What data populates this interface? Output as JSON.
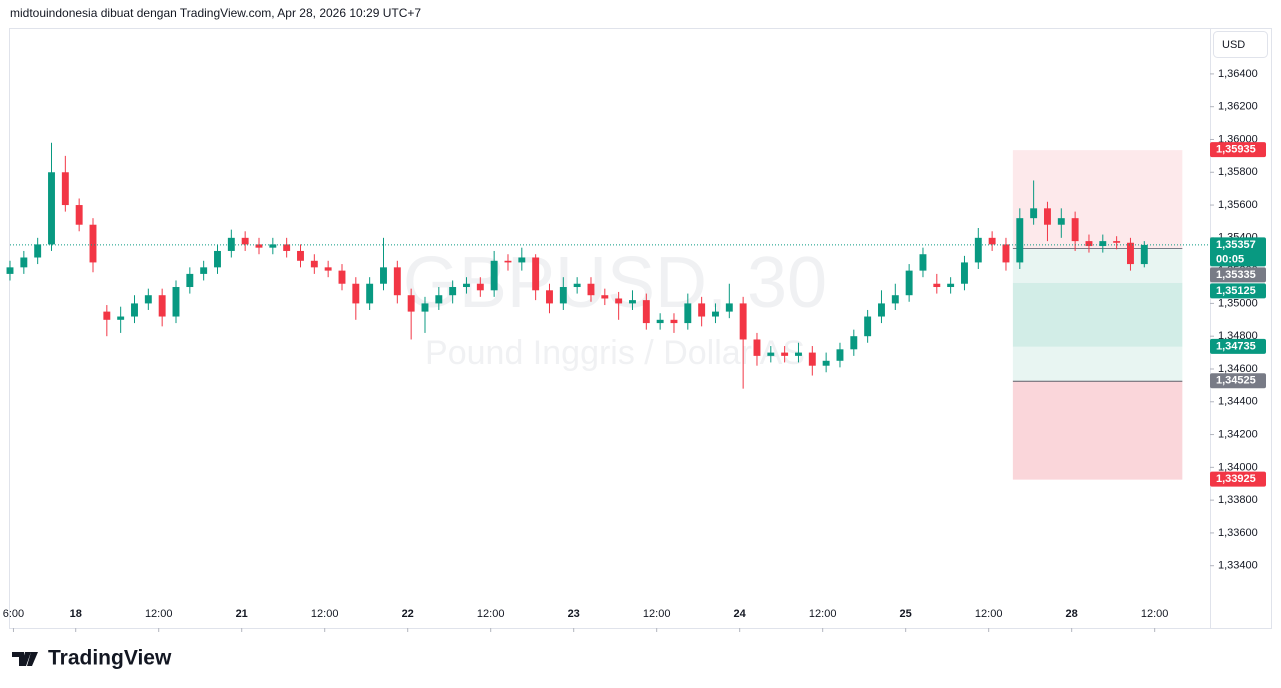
{
  "chart_data": {
    "type": "candlestick",
    "title": "midtouindonesia dibuat dengan TradingView.com, Apr 28, 2026 10:29 UTC+7",
    "watermark": "GBPUSD, 30",
    "watermark_subtitle": "Pound Inggris / Dollar AS",
    "currency": "USD",
    "brand": "TradingView",
    "up_color": "#089981",
    "down_color": "#f23645",
    "xlim": [
      0,
      347
    ],
    "ylim": [
      1.3302,
      1.3668
    ],
    "yticks": [
      {
        "value": 1.334,
        "label": "1,33400"
      },
      {
        "value": 1.336,
        "label": "1,33600"
      },
      {
        "value": 1.338,
        "label": "1,33800"
      },
      {
        "value": 1.34,
        "label": "1,34000"
      },
      {
        "value": 1.342,
        "label": "1,34200"
      },
      {
        "value": 1.344,
        "label": "1,34400"
      },
      {
        "value": 1.346,
        "label": "1,34600"
      },
      {
        "value": 1.348,
        "label": "1,34800"
      },
      {
        "value": 1.35,
        "label": "1,35000"
      },
      {
        "value": 1.352,
        "label": "1,35200"
      },
      {
        "value": 1.354,
        "label": "1,35400"
      },
      {
        "value": 1.356,
        "label": "1,35600"
      },
      {
        "value": 1.358,
        "label": "1,35800"
      },
      {
        "value": 1.36,
        "label": "1,36000"
      },
      {
        "value": 1.362,
        "label": "1,36200"
      },
      {
        "value": 1.364,
        "label": "1,36400"
      }
    ],
    "xticks": [
      {
        "value": 1,
        "label": "6:00"
      },
      {
        "value": 19,
        "label": "18"
      },
      {
        "value": 43,
        "label": "12:00"
      },
      {
        "value": 67,
        "label": "21"
      },
      {
        "value": 91,
        "label": "12:00"
      },
      {
        "value": 115,
        "label": "22"
      },
      {
        "value": 139,
        "label": "12:00"
      },
      {
        "value": 163,
        "label": "23"
      },
      {
        "value": 187,
        "label": "12:00"
      },
      {
        "value": 211,
        "label": "24"
      },
      {
        "value": 235,
        "label": "12:00"
      },
      {
        "value": 259,
        "label": "25"
      },
      {
        "value": 283,
        "label": "12:00"
      },
      {
        "value": 307,
        "label": "28"
      },
      {
        "value": 331,
        "label": "12:00"
      }
    ],
    "x": [
      0,
      4,
      8,
      12,
      16,
      20,
      24,
      28,
      32,
      36,
      40,
      44,
      48,
      52,
      56,
      60,
      64,
      68,
      72,
      76,
      80,
      84,
      88,
      92,
      96,
      100,
      104,
      108,
      112,
      116,
      120,
      124,
      128,
      132,
      136,
      140,
      144,
      148,
      152,
      156,
      160,
      164,
      168,
      172,
      176,
      180,
      184,
      188,
      192,
      196,
      200,
      204,
      208,
      212,
      216,
      220,
      224,
      228,
      232,
      236,
      240,
      244,
      248,
      252,
      256,
      260,
      264,
      268,
      272,
      276,
      280,
      284,
      288,
      292,
      296,
      300,
      304,
      308,
      312,
      316,
      320,
      324,
      328
    ],
    "open": [
      1.3518,
      1.3522,
      1.3528,
      1.3536,
      1.358,
      1.356,
      1.3548,
      1.3495,
      1.349,
      1.3492,
      1.35,
      1.3505,
      1.3492,
      1.351,
      1.3518,
      1.3522,
      1.3532,
      1.354,
      1.3536,
      1.3534,
      1.3536,
      1.3532,
      1.3526,
      1.3522,
      1.352,
      1.3512,
      1.35,
      1.3512,
      1.3522,
      1.3505,
      1.3495,
      1.35,
      1.3505,
      1.351,
      1.3512,
      1.3508,
      1.3526,
      1.3525,
      1.3528,
      1.3508,
      1.35,
      1.351,
      1.3512,
      1.3505,
      1.3503,
      1.35,
      1.3502,
      1.3488,
      1.349,
      1.3488,
      1.35,
      1.3492,
      1.3495,
      1.35,
      1.3478,
      1.3468,
      1.347,
      1.3468,
      1.347,
      1.3462,
      1.3465,
      1.3472,
      1.348,
      1.3492,
      1.35,
      1.3505,
      1.352,
      1.3512,
      1.351,
      1.3512,
      1.3525,
      1.354,
      1.3536,
      1.3525,
      1.3552,
      1.3558,
      1.3548,
      1.3552,
      1.3538,
      1.3535,
      1.3538,
      1.3537,
      1.3524
    ],
    "high": [
      1.3526,
      1.3532,
      1.354,
      1.3598,
      1.359,
      1.3564,
      1.3552,
      1.3499,
      1.3498,
      1.3505,
      1.3509,
      1.3509,
      1.3514,
      1.3522,
      1.3526,
      1.3536,
      1.3545,
      1.3544,
      1.354,
      1.354,
      1.354,
      1.3536,
      1.353,
      1.3526,
      1.3524,
      1.3516,
      1.3516,
      1.354,
      1.3526,
      1.3509,
      1.3504,
      1.351,
      1.3514,
      1.3516,
      1.3516,
      1.3532,
      1.353,
      1.3534,
      1.353,
      1.3512,
      1.3516,
      1.3516,
      1.3516,
      1.3509,
      1.3507,
      1.3508,
      1.3506,
      1.3494,
      1.3494,
      1.3506,
      1.3504,
      1.35,
      1.3512,
      1.3504,
      1.3482,
      1.3474,
      1.3474,
      1.3476,
      1.3474,
      1.347,
      1.3476,
      1.3484,
      1.3496,
      1.3508,
      1.3512,
      1.3524,
      1.3534,
      1.3518,
      1.3516,
      1.3529,
      1.3546,
      1.3544,
      1.354,
      1.3558,
      1.3575,
      1.3562,
      1.3558,
      1.3556,
      1.3542,
      1.3542,
      1.3541,
      1.354,
      1.3538
    ],
    "low": [
      1.3514,
      1.3518,
      1.3524,
      1.3532,
      1.3556,
      1.3544,
      1.3519,
      1.348,
      1.3482,
      1.3488,
      1.3496,
      1.3486,
      1.3488,
      1.3506,
      1.3514,
      1.3518,
      1.3528,
      1.3532,
      1.353,
      1.353,
      1.3528,
      1.3522,
      1.3518,
      1.3516,
      1.3508,
      1.349,
      1.3496,
      1.3508,
      1.35,
      1.3478,
      1.3482,
      1.3496,
      1.35,
      1.3506,
      1.3504,
      1.3504,
      1.352,
      1.352,
      1.3502,
      1.3494,
      1.3496,
      1.3506,
      1.3501,
      1.3499,
      1.349,
      1.3496,
      1.3484,
      1.3484,
      1.3482,
      1.3484,
      1.3486,
      1.3488,
      1.3491,
      1.3448,
      1.3462,
      1.3464,
      1.3464,
      1.3464,
      1.3456,
      1.3458,
      1.3461,
      1.3468,
      1.3476,
      1.3488,
      1.3496,
      1.3501,
      1.3516,
      1.3506,
      1.3506,
      1.3508,
      1.3521,
      1.3532,
      1.352,
      1.3521,
      1.3548,
      1.3538,
      1.354,
      1.3532,
      1.3531,
      1.3531,
      1.3533,
      1.352,
      1.3522
    ],
    "close": [
      1.3522,
      1.3528,
      1.3536,
      1.358,
      1.356,
      1.3548,
      1.3525,
      1.349,
      1.3492,
      1.35,
      1.3505,
      1.3492,
      1.351,
      1.3518,
      1.3522,
      1.3532,
      1.354,
      1.3536,
      1.3534,
      1.3536,
      1.3532,
      1.3526,
      1.3522,
      1.352,
      1.3512,
      1.35,
      1.3512,
      1.3522,
      1.3505,
      1.3495,
      1.35,
      1.3505,
      1.351,
      1.3512,
      1.3508,
      1.3526,
      1.3525,
      1.3528,
      1.3508,
      1.35,
      1.351,
      1.3512,
      1.3505,
      1.3503,
      1.35,
      1.3502,
      1.3488,
      1.349,
      1.3488,
      1.35,
      1.3492,
      1.3495,
      1.35,
      1.3478,
      1.3468,
      1.347,
      1.3468,
      1.347,
      1.3462,
      1.3465,
      1.3472,
      1.348,
      1.3492,
      1.35,
      1.3505,
      1.352,
      1.353,
      1.351,
      1.3512,
      1.3525,
      1.354,
      1.3536,
      1.3525,
      1.3552,
      1.3558,
      1.3548,
      1.3552,
      1.3538,
      1.3535,
      1.3538,
      1.3537,
      1.3524,
      1.35357
    ],
    "position": {
      "x_start": 290,
      "x_end": 339,
      "zones": [
        {
          "from": 1.35935,
          "to": 1.35335,
          "color": "#fde9eb"
        },
        {
          "from": 1.35335,
          "to": 1.35125,
          "color": "#e8f5f2"
        },
        {
          "from": 1.35125,
          "to": 1.34735,
          "color": "#d2ede7"
        },
        {
          "from": 1.34735,
          "to": 1.34525,
          "color": "#e8f5f2"
        },
        {
          "from": 1.34525,
          "to": 1.33925,
          "color": "#fad6da"
        }
      ],
      "lines": [
        {
          "value": 1.35335,
          "color": "#787b86"
        },
        {
          "value": 1.34525,
          "color": "#5d606b"
        }
      ]
    },
    "last_price": {
      "value": 1.35357,
      "label": "1,35357",
      "countdown": "00:05",
      "color": "#089981"
    },
    "price_labels": [
      {
        "value": 1.35935,
        "label": "1,35935",
        "color": "#f23645"
      },
      {
        "value": 1.35335,
        "label": "1,35335",
        "color": "#787b86"
      },
      {
        "value": 1.35125,
        "label": "1,35125",
        "color": "#089981"
      },
      {
        "value": 1.34735,
        "label": "1,34735",
        "color": "#089981"
      },
      {
        "value": 1.34525,
        "label": "1,34525",
        "color": "#787b86"
      },
      {
        "value": 1.33925,
        "label": "1,33925",
        "color": "#f23645"
      }
    ]
  }
}
